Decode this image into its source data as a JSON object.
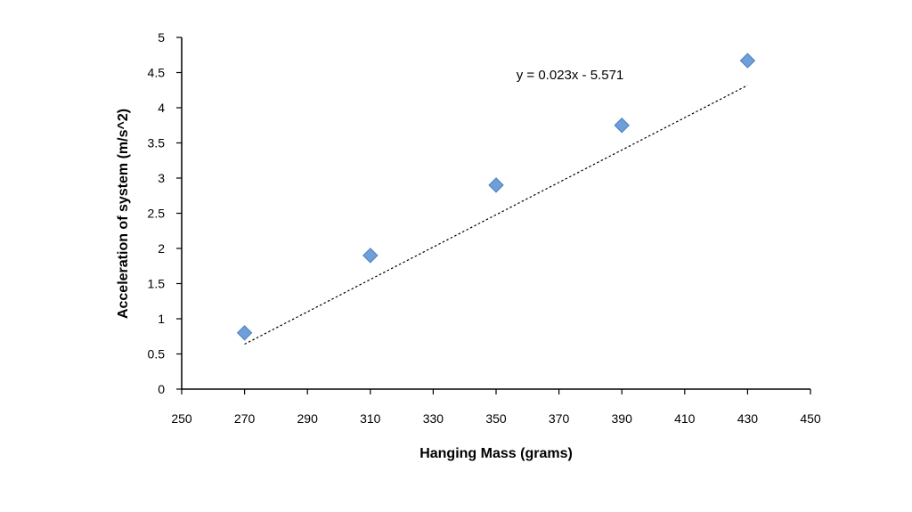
{
  "chart_data": {
    "type": "scatter",
    "xlabel": "Hanging Mass (grams)",
    "ylabel": "Acceleration of system (m/s^2)",
    "xlim": [
      250,
      450
    ],
    "ylim": [
      0,
      5
    ],
    "x_ticks": [
      250,
      270,
      290,
      310,
      330,
      350,
      370,
      390,
      410,
      430,
      450
    ],
    "y_ticks": [
      0,
      0.5,
      1,
      1.5,
      2,
      2.5,
      3,
      3.5,
      4,
      4.5,
      5
    ],
    "x_tick_labels": [
      "250",
      "270",
      "290",
      "310",
      "330",
      "350",
      "370",
      "390",
      "410",
      "430",
      "450"
    ],
    "y_tick_labels": [
      "0",
      "0.5",
      "1",
      "1.5",
      "2",
      "2.5",
      "3",
      "3.5",
      "4",
      "4.5",
      "5"
    ],
    "series": [
      {
        "x": [
          270,
          310,
          350,
          390,
          430
        ],
        "y": [
          0.8,
          1.9,
          2.9,
          3.75,
          4.67
        ],
        "marker": "diamond",
        "color": "#6f9fd8",
        "edge_color": "#4a7fc0"
      }
    ],
    "trendline": {
      "type": "linear",
      "slope": 0.023,
      "intercept": -5.571,
      "x_range": [
        270,
        430
      ],
      "style": "dotted",
      "color": "#000000",
      "label": "y = 0.023x - 5.571"
    },
    "grid": false,
    "legend": "none"
  }
}
